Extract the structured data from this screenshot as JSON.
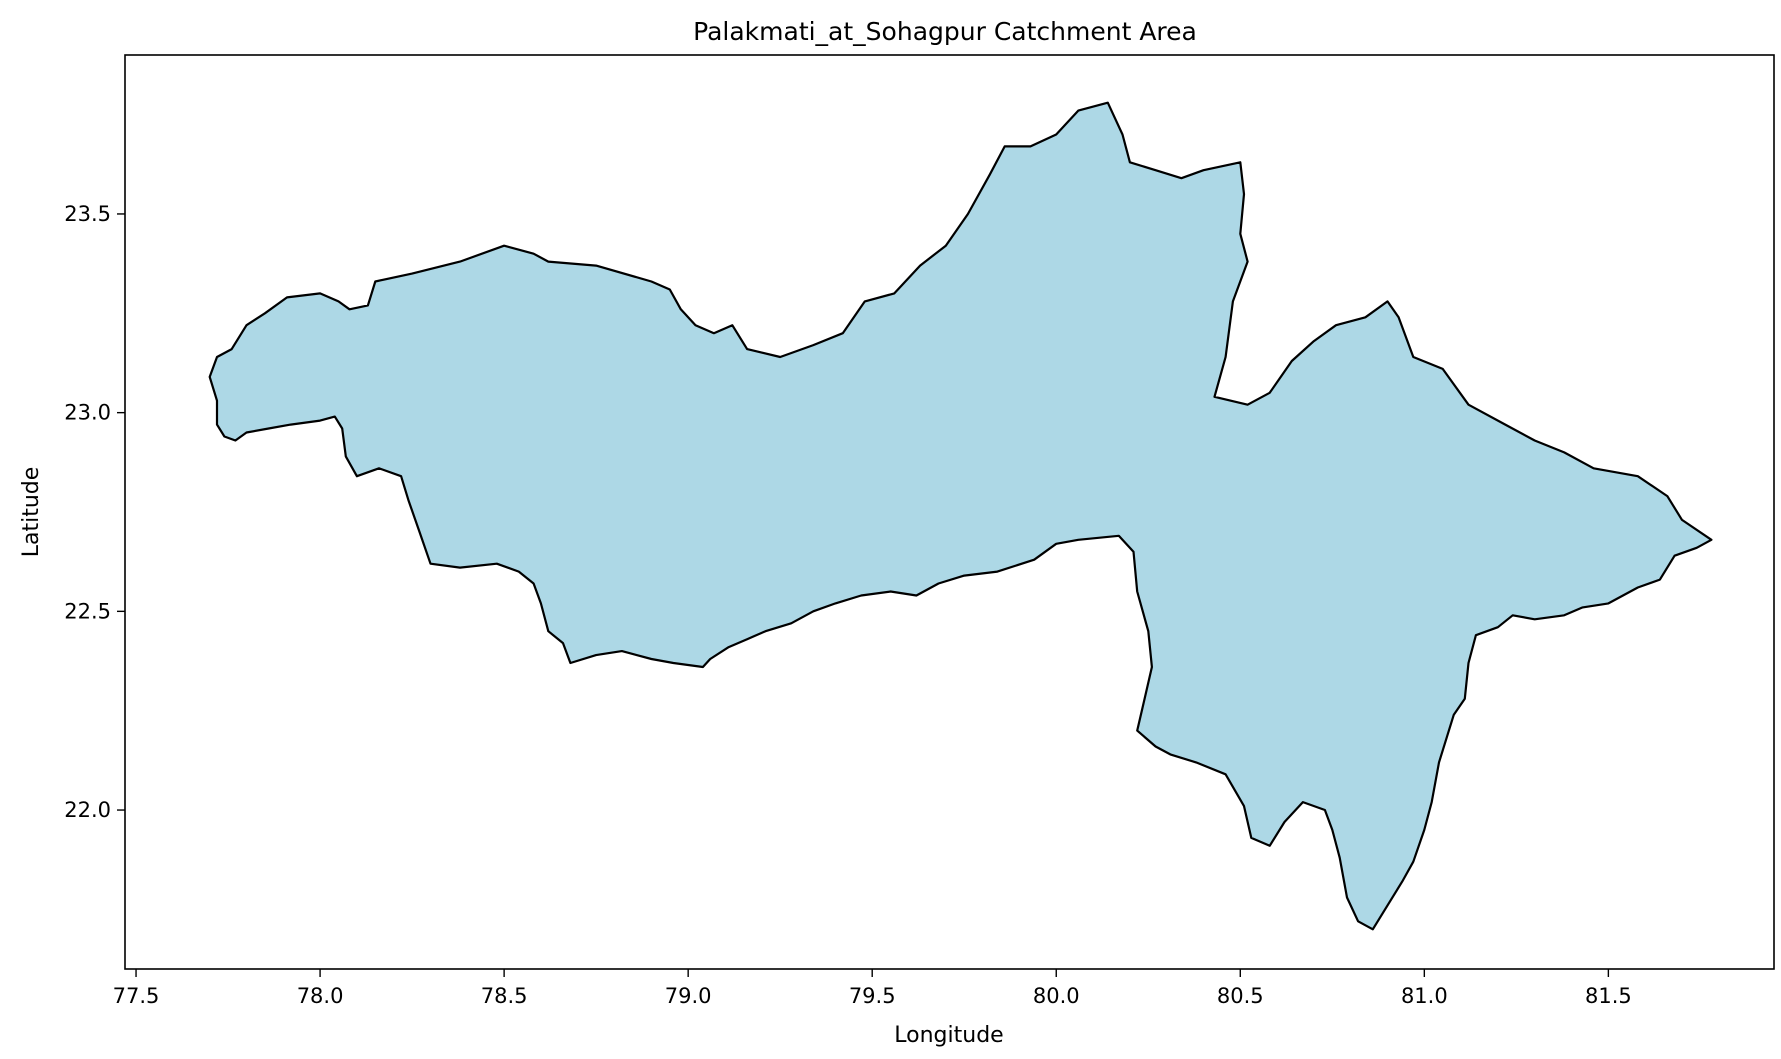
{
  "chart_data": {
    "type": "map",
    "title": "Palakmati_at_Sohagpur Catchment Area",
    "xlabel": "Longitude",
    "ylabel": "Latitude",
    "xlim": [
      77.47,
      81.95
    ],
    "ylim": [
      21.6,
      23.9
    ],
    "xticks": [
      "77.5",
      "78.0",
      "78.5",
      "79.0",
      "79.5",
      "80.0",
      "80.5",
      "81.0",
      "81.5"
    ],
    "yticks": [
      "22.0",
      "22.5",
      "23.0",
      "23.5"
    ],
    "grid": false,
    "fill_color": "#add8e6",
    "edge_color": "#000000",
    "catchment_boundary": [
      [
        77.72,
        23.14
      ],
      [
        77.76,
        23.16
      ],
      [
        77.8,
        23.22
      ],
      [
        77.85,
        23.25
      ],
      [
        77.91,
        23.29
      ],
      [
        78.0,
        23.3
      ],
      [
        78.05,
        23.28
      ],
      [
        78.08,
        23.26
      ],
      [
        78.13,
        23.27
      ],
      [
        78.15,
        23.33
      ],
      [
        78.25,
        23.35
      ],
      [
        78.38,
        23.38
      ],
      [
        78.5,
        23.42
      ],
      [
        78.58,
        23.4
      ],
      [
        78.62,
        23.38
      ],
      [
        78.75,
        23.37
      ],
      [
        78.9,
        23.33
      ],
      [
        78.95,
        23.31
      ],
      [
        78.98,
        23.26
      ],
      [
        79.02,
        23.22
      ],
      [
        79.07,
        23.2
      ],
      [
        79.12,
        23.22
      ],
      [
        79.16,
        23.16
      ],
      [
        79.25,
        23.14
      ],
      [
        79.34,
        23.17
      ],
      [
        79.42,
        23.2
      ],
      [
        79.48,
        23.28
      ],
      [
        79.56,
        23.3
      ],
      [
        79.63,
        23.37
      ],
      [
        79.7,
        23.42
      ],
      [
        79.76,
        23.5
      ],
      [
        79.82,
        23.6
      ],
      [
        79.86,
        23.67
      ],
      [
        79.93,
        23.67
      ],
      [
        80.0,
        23.7
      ],
      [
        80.06,
        23.76
      ],
      [
        80.14,
        23.78
      ],
      [
        80.18,
        23.7
      ],
      [
        80.2,
        23.63
      ],
      [
        80.27,
        23.61
      ],
      [
        80.34,
        23.59
      ],
      [
        80.4,
        23.61
      ],
      [
        80.5,
        23.63
      ],
      [
        80.51,
        23.55
      ],
      [
        80.5,
        23.45
      ],
      [
        80.52,
        23.38
      ],
      [
        80.48,
        23.28
      ],
      [
        80.46,
        23.14
      ],
      [
        80.43,
        23.04
      ],
      [
        80.52,
        23.02
      ],
      [
        80.58,
        23.05
      ],
      [
        80.64,
        23.13
      ],
      [
        80.7,
        23.18
      ],
      [
        80.76,
        23.22
      ],
      [
        80.84,
        23.24
      ],
      [
        80.9,
        23.28
      ],
      [
        80.93,
        23.24
      ],
      [
        80.97,
        23.14
      ],
      [
        81.05,
        23.11
      ],
      [
        81.12,
        23.02
      ],
      [
        81.22,
        22.97
      ],
      [
        81.3,
        22.93
      ],
      [
        81.38,
        22.9
      ],
      [
        81.46,
        22.86
      ],
      [
        81.58,
        22.84
      ],
      [
        81.66,
        22.79
      ],
      [
        81.7,
        22.73
      ],
      [
        81.78,
        22.68
      ],
      [
        81.74,
        22.66
      ],
      [
        81.68,
        22.64
      ],
      [
        81.64,
        22.58
      ],
      [
        81.58,
        22.56
      ],
      [
        81.5,
        22.52
      ],
      [
        81.43,
        22.51
      ],
      [
        81.38,
        22.49
      ],
      [
        81.3,
        22.48
      ],
      [
        81.24,
        22.49
      ],
      [
        81.2,
        22.46
      ],
      [
        81.14,
        22.44
      ],
      [
        81.12,
        22.37
      ],
      [
        81.11,
        22.28
      ],
      [
        81.08,
        22.24
      ],
      [
        81.04,
        22.12
      ],
      [
        81.02,
        22.02
      ],
      [
        81.0,
        21.95
      ],
      [
        80.97,
        21.87
      ],
      [
        80.94,
        21.82
      ],
      [
        80.9,
        21.76
      ],
      [
        80.86,
        21.7
      ],
      [
        80.82,
        21.72
      ],
      [
        80.79,
        21.78
      ],
      [
        80.77,
        21.88
      ],
      [
        80.75,
        21.95
      ],
      [
        80.73,
        22.0
      ],
      [
        80.67,
        22.02
      ],
      [
        80.62,
        21.97
      ],
      [
        80.58,
        21.91
      ],
      [
        80.53,
        21.93
      ],
      [
        80.51,
        22.01
      ],
      [
        80.46,
        22.09
      ],
      [
        80.38,
        22.12
      ],
      [
        80.31,
        22.14
      ],
      [
        80.27,
        22.16
      ],
      [
        80.22,
        22.2
      ],
      [
        80.24,
        22.28
      ],
      [
        80.26,
        22.36
      ],
      [
        80.25,
        22.45
      ],
      [
        80.22,
        22.55
      ],
      [
        80.21,
        22.65
      ],
      [
        80.17,
        22.69
      ],
      [
        80.06,
        22.68
      ],
      [
        80.0,
        22.67
      ],
      [
        79.94,
        22.63
      ],
      [
        79.84,
        22.6
      ],
      [
        79.75,
        22.59
      ],
      [
        79.68,
        22.57
      ],
      [
        79.62,
        22.54
      ],
      [
        79.55,
        22.55
      ],
      [
        79.47,
        22.54
      ],
      [
        79.4,
        22.52
      ],
      [
        79.34,
        22.5
      ],
      [
        79.28,
        22.47
      ],
      [
        79.21,
        22.45
      ],
      [
        79.16,
        22.43
      ],
      [
        79.11,
        22.41
      ],
      [
        79.06,
        22.38
      ],
      [
        79.04,
        22.36
      ],
      [
        78.96,
        22.37
      ],
      [
        78.9,
        22.38
      ],
      [
        78.82,
        22.4
      ],
      [
        78.75,
        22.39
      ],
      [
        78.68,
        22.37
      ],
      [
        78.66,
        22.42
      ],
      [
        78.62,
        22.45
      ],
      [
        78.6,
        22.52
      ],
      [
        78.58,
        22.57
      ],
      [
        78.54,
        22.6
      ],
      [
        78.48,
        22.62
      ],
      [
        78.38,
        22.61
      ],
      [
        78.3,
        22.62
      ],
      [
        78.27,
        22.7
      ],
      [
        78.24,
        22.78
      ],
      [
        78.22,
        22.84
      ],
      [
        78.16,
        22.86
      ],
      [
        78.1,
        22.84
      ],
      [
        78.07,
        22.89
      ],
      [
        78.06,
        22.96
      ],
      [
        78.04,
        22.99
      ],
      [
        78.0,
        22.98
      ],
      [
        77.92,
        22.97
      ],
      [
        77.86,
        22.96
      ],
      [
        77.8,
        22.95
      ],
      [
        77.77,
        22.93
      ],
      [
        77.74,
        22.94
      ],
      [
        77.72,
        22.97
      ],
      [
        77.72,
        23.03
      ],
      [
        77.7,
        23.09
      ],
      [
        77.72,
        23.14
      ]
    ]
  }
}
